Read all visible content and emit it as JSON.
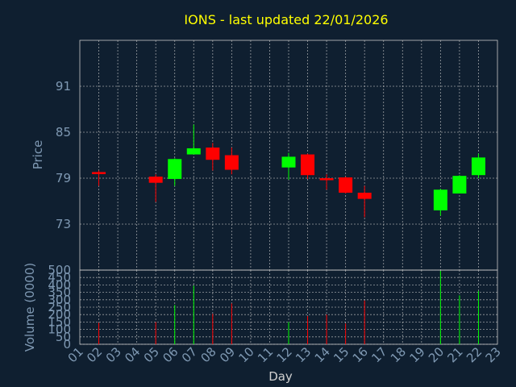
{
  "chart_data": [
    {
      "type": "candlestick",
      "title": "IONS - last updated 22/01/2026",
      "ylabel": "Price",
      "ylim": [
        67,
        97
      ],
      "yticks": [
        73,
        79,
        85,
        91
      ],
      "ytick_labels": [
        "73",
        "79",
        "85",
        "91"
      ],
      "grid": true,
      "colors": {
        "up": "#00ff00",
        "down": "#ff0000"
      },
      "candles": [
        {
          "day": "02",
          "open": 79.8,
          "high": 80.0,
          "low": 78.0,
          "close": 79.6
        },
        {
          "day": "05",
          "open": 79.2,
          "high": 79.5,
          "low": 75.9,
          "close": 78.4
        },
        {
          "day": "06",
          "open": 78.9,
          "high": 81.6,
          "low": 78.0,
          "close": 81.5
        },
        {
          "day": "07",
          "open": 82.1,
          "high": 86.0,
          "low": 82.1,
          "close": 82.9
        },
        {
          "day": "08",
          "open": 83.0,
          "high": 83.6,
          "low": 80.0,
          "close": 81.4
        },
        {
          "day": "09",
          "open": 82.0,
          "high": 83.0,
          "low": 79.5,
          "close": 80.1
        },
        {
          "day": "12",
          "open": 80.4,
          "high": 82.3,
          "low": 78.8,
          "close": 81.8
        },
        {
          "day": "13",
          "open": 82.1,
          "high": 82.2,
          "low": 78.9,
          "close": 79.4
        },
        {
          "day": "14",
          "open": 79.0,
          "high": 79.5,
          "low": 77.5,
          "close": 78.8
        },
        {
          "day": "15",
          "open": 79.1,
          "high": 79.2,
          "low": 77.0,
          "close": 77.1
        },
        {
          "day": "16",
          "open": 77.1,
          "high": 78.0,
          "low": 73.9,
          "close": 76.3
        },
        {
          "day": "20",
          "open": 74.8,
          "high": 77.6,
          "low": 74.1,
          "close": 77.5
        },
        {
          "day": "21",
          "open": 77.0,
          "high": 79.4,
          "low": 77.0,
          "close": 79.3
        },
        {
          "day": "22",
          "open": 79.4,
          "high": 82.2,
          "low": 79.0,
          "close": 81.7
        }
      ]
    },
    {
      "type": "bar",
      "xlabel": "Day",
      "ylabel": "Volume (0000)",
      "ylim": [
        0,
        500
      ],
      "yticks": [
        0,
        50,
        100,
        150,
        200,
        250,
        300,
        350,
        400,
        450,
        500
      ],
      "ytick_labels": [
        "0",
        "50",
        "100",
        "150",
        "200",
        "250",
        "300",
        "350",
        "400",
        "450",
        "500"
      ],
      "categories": [
        "01",
        "02",
        "03",
        "04",
        "05",
        "06",
        "07",
        "08",
        "09",
        "10",
        "11",
        "12",
        "13",
        "14",
        "15",
        "16",
        "17",
        "18",
        "19",
        "20",
        "21",
        "22",
        "23"
      ],
      "grid": true,
      "volumes": [
        {
          "day": "02",
          "value": 145,
          "direction": "down"
        },
        {
          "day": "05",
          "value": 150,
          "direction": "down"
        },
        {
          "day": "06",
          "value": 265,
          "direction": "up"
        },
        {
          "day": "07",
          "value": 395,
          "direction": "up"
        },
        {
          "day": "08",
          "value": 205,
          "direction": "down"
        },
        {
          "day": "09",
          "value": 275,
          "direction": "down"
        },
        {
          "day": "12",
          "value": 150,
          "direction": "up"
        },
        {
          "day": "13",
          "value": 190,
          "direction": "down"
        },
        {
          "day": "14",
          "value": 200,
          "direction": "down"
        },
        {
          "day": "15",
          "value": 140,
          "direction": "down"
        },
        {
          "day": "16",
          "value": 295,
          "direction": "down"
        },
        {
          "day": "20",
          "value": 495,
          "direction": "up"
        },
        {
          "day": "21",
          "value": 330,
          "direction": "up"
        },
        {
          "day": "22",
          "value": 360,
          "direction": "up"
        }
      ]
    }
  ]
}
